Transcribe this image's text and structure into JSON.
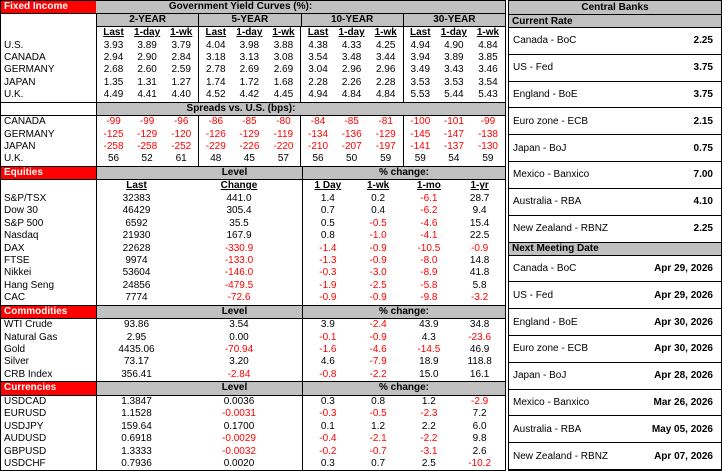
{
  "colors": {
    "section_red": "#FF0000",
    "header_gray": "#C0C0C0",
    "negative": "#FF0000"
  },
  "fixed_income": {
    "section_label": "Fixed Income",
    "title": "Government Yield Curves (%):",
    "tenors": [
      "2-YEAR",
      "5-YEAR",
      "10-YEAR",
      "30-YEAR"
    ],
    "subheaders": [
      "Last",
      "1-day",
      "1-wk"
    ],
    "yield_rows": [
      {
        "name": "U.S.",
        "values": [
          "3.93",
          "3.89",
          "3.79",
          "4.04",
          "3.98",
          "3.88",
          "4.38",
          "4.33",
          "4.25",
          "4.94",
          "4.90",
          "4.84"
        ]
      },
      {
        "name": "CANADA",
        "values": [
          "2.94",
          "2.90",
          "2.84",
          "3.18",
          "3.13",
          "3.08",
          "3.54",
          "3.48",
          "3.44",
          "3.94",
          "3.89",
          "3.85"
        ]
      },
      {
        "name": "GERMANY",
        "values": [
          "2.68",
          "2.60",
          "2.59",
          "2.78",
          "2.69",
          "2.69",
          "3.04",
          "2.96",
          "2.96",
          "3.49",
          "3.43",
          "3.46"
        ]
      },
      {
        "name": "JAPAN",
        "values": [
          "1.35",
          "1.31",
          "1.27",
          "1.74",
          "1.72",
          "1.68",
          "2.28",
          "2.26",
          "2.28",
          "3.53",
          "3.53",
          "3.54"
        ]
      },
      {
        "name": "U.K.",
        "values": [
          "4.49",
          "4.41",
          "4.40",
          "4.52",
          "4.42",
          "4.45",
          "4.94",
          "4.84",
          "4.84",
          "5.53",
          "5.44",
          "5.43"
        ]
      }
    ],
    "spreads_title": "Spreads vs. U.S. (bps):",
    "spread_rows": [
      {
        "name": "CANADA",
        "values": [
          "-99",
          "-99",
          "-96",
          "-86",
          "-85",
          "-80",
          "-84",
          "-85",
          "-81",
          "-100",
          "-101",
          "-99"
        ]
      },
      {
        "name": "GERMANY",
        "values": [
          "-125",
          "-129",
          "-120",
          "-126",
          "-129",
          "-119",
          "-134",
          "-136",
          "-129",
          "-145",
          "-147",
          "-138"
        ]
      },
      {
        "name": "JAPAN",
        "values": [
          "-258",
          "-258",
          "-252",
          "-229",
          "-226",
          "-220",
          "-210",
          "-207",
          "-197",
          "-141",
          "-137",
          "-130"
        ]
      },
      {
        "name": "U.K.",
        "values": [
          "56",
          "52",
          "61",
          "48",
          "45",
          "57",
          "56",
          "50",
          "59",
          "59",
          "54",
          "59"
        ]
      }
    ]
  },
  "equities": {
    "section_label": "Equities",
    "level_label": "Level",
    "pct_label": "% change:",
    "col_headers": [
      "Last",
      "Change",
      "1 Day",
      "1-wk",
      "1-mo",
      "1-yr"
    ],
    "rows": [
      {
        "name": "S&P/TSX",
        "values": [
          "32383",
          "441.0",
          "1.4",
          "0.2",
          "-6.1",
          "28.7"
        ]
      },
      {
        "name": "Dow 30",
        "values": [
          "46429",
          "305.4",
          "0.7",
          "0.4",
          "-6.2",
          "9.4"
        ]
      },
      {
        "name": "S&P 500",
        "values": [
          "6592",
          "35.5",
          "0.5",
          "-0.5",
          "-4.6",
          "15.4"
        ]
      },
      {
        "name": "Nasdaq",
        "values": [
          "21930",
          "167.9",
          "0.8",
          "-1.0",
          "-4.1",
          "22.5"
        ]
      },
      {
        "name": "DAX",
        "values": [
          "22628",
          "-330.9",
          "-1.4",
          "-0.9",
          "-10.5",
          "-0.9"
        ]
      },
      {
        "name": "FTSE",
        "values": [
          "9974",
          "-133.0",
          "-1.3",
          "-0.9",
          "-8.0",
          "14.8"
        ]
      },
      {
        "name": "Nikkei",
        "values": [
          "53604",
          "-146.0",
          "-0.3",
          "-3.0",
          "-8.9",
          "41.8"
        ]
      },
      {
        "name": "Hang Seng",
        "values": [
          "24856",
          "-479.5",
          "-1.9",
          "-2.5",
          "-5.8",
          "5.8"
        ]
      },
      {
        "name": "CAC",
        "values": [
          "7774",
          "-72.6",
          "-0.9",
          "-0.9",
          "-9.8",
          "-3.2"
        ]
      }
    ]
  },
  "commodities": {
    "section_label": "Commodities",
    "level_label": "Level",
    "pct_label": "% change:",
    "rows": [
      {
        "name": "WTI Crude",
        "values": [
          "93.86",
          "3.54",
          "3.9",
          "-2.4",
          "43.9",
          "34.8"
        ]
      },
      {
        "name": "Natural Gas",
        "values": [
          "2.95",
          "0.00",
          "-0.1",
          "-0.9",
          "4.3",
          "-23.6"
        ]
      },
      {
        "name": "Gold",
        "values": [
          "4435.06",
          "-70.94",
          "-1.6",
          "-4.6",
          "-14.5",
          "46.9"
        ]
      },
      {
        "name": "Silver",
        "values": [
          "73.17",
          "3.20",
          "4.6",
          "-7.9",
          "18.9",
          "118.8"
        ]
      },
      {
        "name": "CRB Index",
        "values": [
          "356.41",
          "-2.84",
          "-0.8",
          "-2.2",
          "15.0",
          "16.1"
        ]
      }
    ]
  },
  "currencies": {
    "section_label": "Currencies",
    "level_label": "Level",
    "pct_label": "% change:",
    "rows": [
      {
        "name": "USDCAD",
        "values": [
          "1.3847",
          "0.0036",
          "0.3",
          "0.8",
          "1.2",
          "-2.9"
        ]
      },
      {
        "name": "EURUSD",
        "values": [
          "1.1528",
          "-0.0031",
          "-0.3",
          "-0.5",
          "-2.3",
          "7.2"
        ]
      },
      {
        "name": "USDJPY",
        "values": [
          "159.64",
          "0.1700",
          "0.1",
          "1.2",
          "2.2",
          "6.0"
        ]
      },
      {
        "name": "AUDUSD",
        "values": [
          "0.6918",
          "-0.0029",
          "-0.4",
          "-2.1",
          "-2.2",
          "9.8"
        ]
      },
      {
        "name": "GBPUSD",
        "values": [
          "1.3333",
          "-0.0032",
          "-0.2",
          "-0.7",
          "-3.1",
          "2.6"
        ]
      },
      {
        "name": "USDCHF",
        "values": [
          "0.7936",
          "0.0020",
          "0.3",
          "0.7",
          "2.5",
          "-10.2"
        ]
      }
    ]
  },
  "central_banks": {
    "title": "Central Banks",
    "current_rate_title": "Current Rate",
    "rates": [
      {
        "name": "Canada - BoC",
        "value": "2.25"
      },
      {
        "name": "US - Fed",
        "value": "3.75"
      },
      {
        "name": "England - BoE",
        "value": "3.75"
      },
      {
        "name": "Euro zone - ECB",
        "value": "2.15"
      },
      {
        "name": "Japan - BoJ",
        "value": "0.75"
      },
      {
        "name": "Mexico - Banxico",
        "value": "7.00"
      },
      {
        "name": "Australia - RBA",
        "value": "4.10"
      },
      {
        "name": "New Zealand - RBNZ",
        "value": "2.25"
      }
    ],
    "next_meeting_title": "Next Meeting Date",
    "meetings": [
      {
        "name": "Canada - BoC",
        "value": "Apr 29, 2026"
      },
      {
        "name": "US - Fed",
        "value": "Apr 29, 2026"
      },
      {
        "name": "England - BoE",
        "value": "Apr 30, 2026"
      },
      {
        "name": "Euro zone - ECB",
        "value": "Apr 30, 2026"
      },
      {
        "name": "Japan - BoJ",
        "value": "Apr 28, 2026"
      },
      {
        "name": "Mexico - Banxico",
        "value": "Mar 26, 2026"
      },
      {
        "name": "Australia - RBA",
        "value": "May 05, 2026"
      },
      {
        "name": "New Zealand - RBNZ",
        "value": "Apr 07, 2026"
      }
    ]
  }
}
